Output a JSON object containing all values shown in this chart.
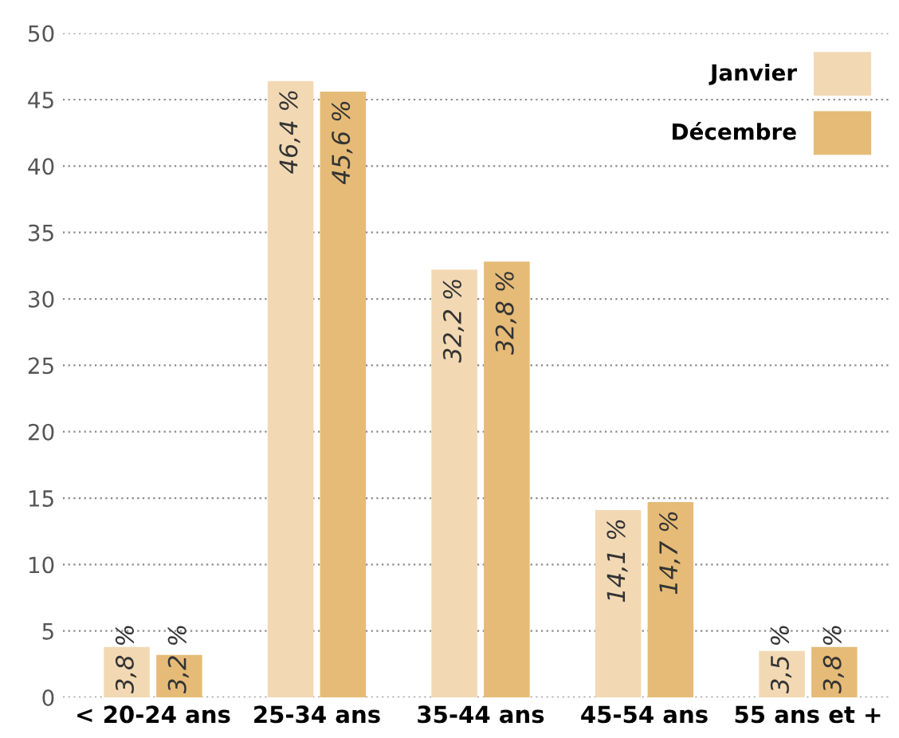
{
  "chart_data": {
    "type": "bar",
    "categories": [
      "< 20-24 ans",
      "25-34 ans",
      "35-44 ans",
      "45-54 ans",
      "55 ans et +"
    ],
    "series": [
      {
        "name": "Janvier",
        "color": "#f2d9b4",
        "values": [
          3.8,
          46.4,
          32.2,
          14.1,
          3.5
        ],
        "value_labels": [
          "3,8 %",
          "46,4 %",
          "32,2 %",
          "14,1 %",
          "3,5 %"
        ]
      },
      {
        "name": "Décembre",
        "color": "#e5bb77",
        "values": [
          3.2,
          45.6,
          32.8,
          14.7,
          3.8
        ],
        "value_labels": [
          "3,2 %",
          "45,6 %",
          "32,8 %",
          "14,7 %",
          "3,8 %"
        ]
      }
    ],
    "ylim": [
      0,
      50
    ],
    "yticks": [
      0,
      5,
      10,
      15,
      20,
      25,
      30,
      35,
      40,
      45,
      50
    ],
    "grid": "y",
    "legend": "top right"
  }
}
